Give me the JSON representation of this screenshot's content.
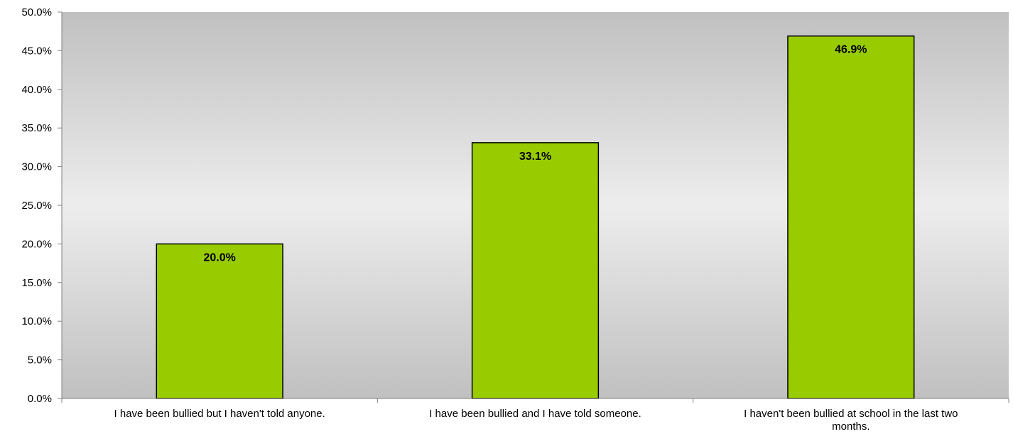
{
  "chart_data": {
    "type": "bar",
    "title": "",
    "xlabel": "",
    "ylabel": "",
    "categories": [
      [
        "I have been bullied but I haven't told anyone."
      ],
      [
        "I have been bullied and I have told someone."
      ],
      [
        "I haven't been bullied at school in the last two",
        "months."
      ]
    ],
    "values": [
      20.0,
      33.1,
      46.9
    ],
    "data_labels": [
      "20.0%",
      "33.1%",
      "46.9%"
    ],
    "ylim": [
      0,
      50
    ],
    "yticks": [
      0,
      5,
      10,
      15,
      20,
      25,
      30,
      35,
      40,
      45,
      50
    ],
    "ytick_labels": [
      "0.0%",
      "5.0%",
      "10.0%",
      "15.0%",
      "20.0%",
      "25.0%",
      "30.0%",
      "35.0%",
      "40.0%",
      "45.0%",
      "50.0%"
    ],
    "grid": false,
    "legend": "none",
    "colors": {
      "bar_fill": "#99CC00",
      "bar_stroke": "#000000",
      "plot_gradient_edge": "#C0C0C0",
      "plot_gradient_center": "#EDEDED",
      "axis": "#808080"
    }
  }
}
